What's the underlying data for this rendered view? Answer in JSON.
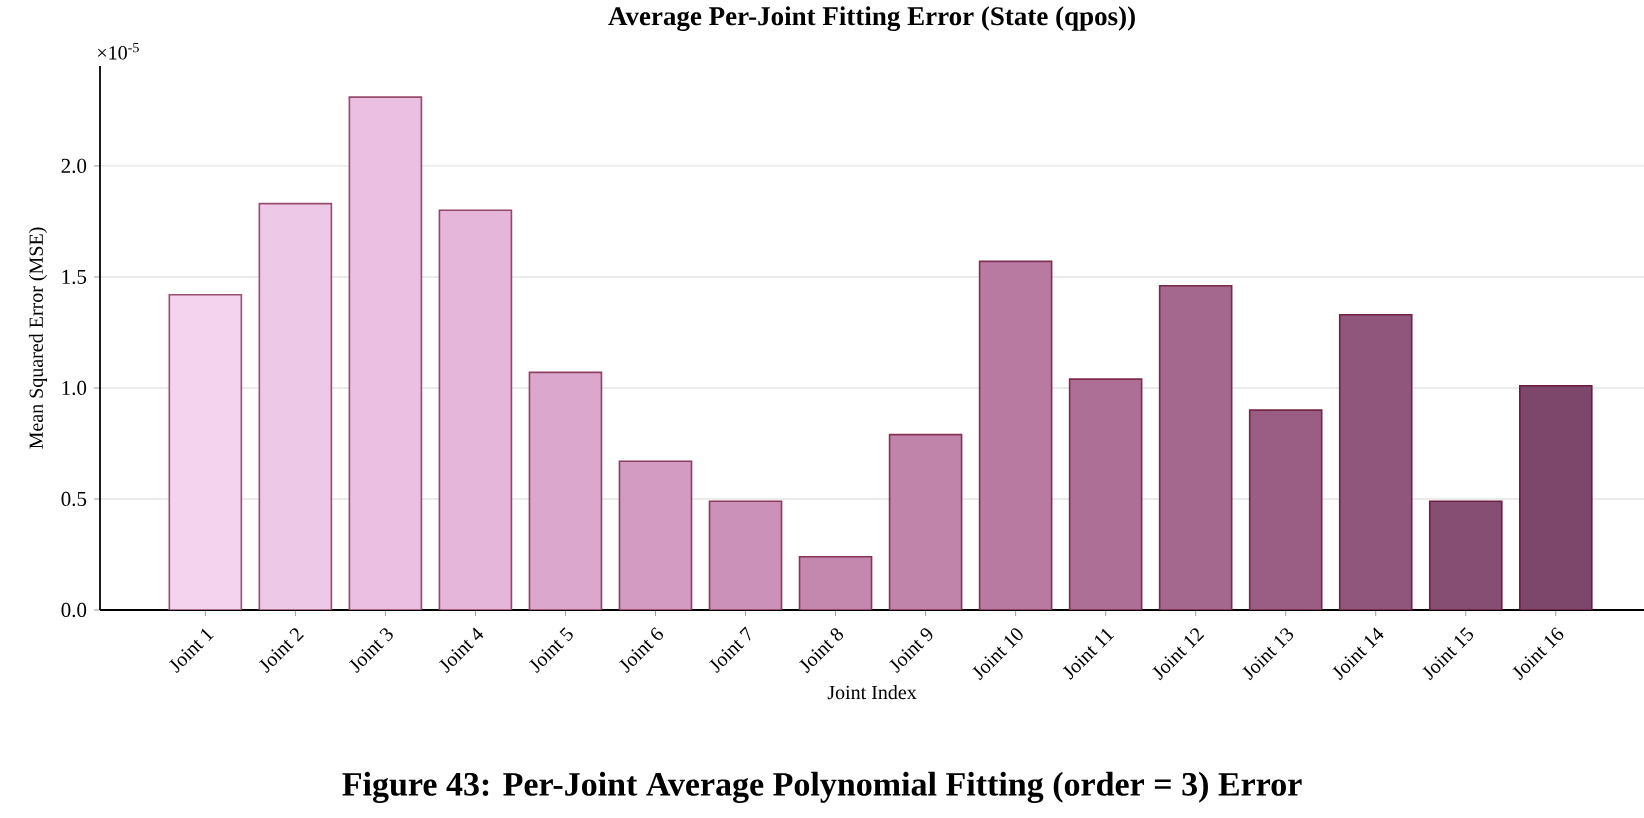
{
  "chart_data": {
    "type": "bar",
    "title": "Average Per-Joint Fitting Error (State (qpos))",
    "xlabel": "Joint Index",
    "ylabel": "Mean Squared Error (MSE)",
    "categories": [
      "Joint 1",
      "Joint 2",
      "Joint 3",
      "Joint 4",
      "Joint 5",
      "Joint 6",
      "Joint 7",
      "Joint 8",
      "Joint 9",
      "Joint 10",
      "Joint 11",
      "Joint 12",
      "Joint 13",
      "Joint 14",
      "Joint 15",
      "Joint 16"
    ],
    "values": [
      1.42,
      1.83,
      2.31,
      1.8,
      1.07,
      0.67,
      0.49,
      0.24,
      0.79,
      1.57,
      1.04,
      1.46,
      0.9,
      1.33,
      0.49,
      1.01
    ],
    "colors": [
      "#f3d3ee",
      "#eec8e7",
      "#eabfe2",
      "#e5b5da",
      "#dca7cd",
      "#d49bc2",
      "#cc91b8",
      "#c488ae",
      "#c083aa",
      "#b97aa1",
      "#ae6f97",
      "#a4678e",
      "#9a5e85",
      "#90567c",
      "#864e73",
      "#7c476a"
    ],
    "ylim": [
      0,
      2.45
    ],
    "yticks": [
      {
        "value": 0,
        "label": "0.0"
      },
      {
        "value": 0.5,
        "label": "0.5"
      },
      {
        "value": 1.0,
        "label": "1.0"
      },
      {
        "value": 1.5,
        "label": "1.5"
      },
      {
        "value": 2.0,
        "label": "2.0"
      }
    ],
    "grid": "y",
    "annotations": [
      "×10$^{-5}$",
      "Figure 43: Per-Joint Average Polynomial Fitting (order = 3) Error"
    ]
  }
}
